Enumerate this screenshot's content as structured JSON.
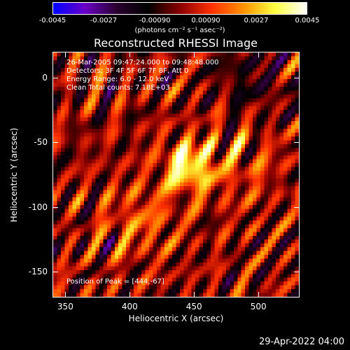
{
  "colorbar": {
    "ticks": [
      "-0.0045",
      "-0.0027",
      "-0.00090",
      "0.00090",
      "0.0027",
      "0.0045"
    ],
    "unit": "(photons cm⁻² s⁻¹ asec⁻²)"
  },
  "title": "Reconstructed RHESSI Image",
  "info": {
    "line1": "26-Mar-2005 09:47:24.000 to 09:48:48.000",
    "line2": "Detectors: 3F 4F 5F 6F 7F 8F, Att 0",
    "line3": "Energy Range: 6.0 - 12.0 keV",
    "line4": "Clean    Total counts: 7.18E+03",
    "position": "Position of Peak = [444,-67]"
  },
  "footer": {
    "timestamp": "29-Apr-2022 04:00"
  },
  "chart_data": {
    "type": "heatmap",
    "title": "Reconstructed RHESSI Image",
    "xlabel": "Heliocentric X (arcsec)",
    "ylabel": "Heliocentric Y (arcsec)",
    "xlim": [
      340,
      532
    ],
    "ylim": [
      -170,
      20
    ],
    "xticks": [
      350,
      400,
      450,
      500
    ],
    "yticks": [
      0,
      -50,
      -100,
      -150
    ],
    "value_range": [
      -0.0045,
      0.0045
    ],
    "peak": {
      "x": 444,
      "y": -67
    },
    "colormap": [
      "#0000ff",
      "#6a00c8",
      "#2a0030",
      "#000000",
      "#8a0000",
      "#ff3000",
      "#ff9000",
      "#ffff40",
      "#ffffff"
    ]
  }
}
